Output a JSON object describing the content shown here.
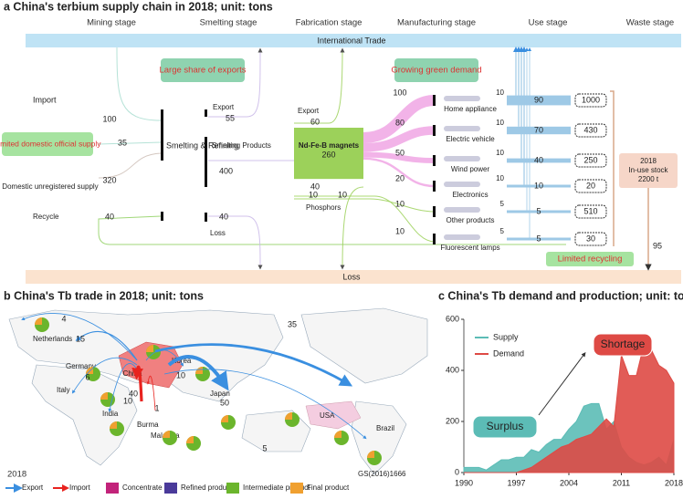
{
  "panel_a": {
    "title": "a China's terbium supply chain in 2018; unit: tons",
    "stages": [
      "Mining stage",
      "Smelting stage",
      "Fabrication stage",
      "Manufacturing stage",
      "Use stage",
      "Waste stage"
    ],
    "trade_bar": "International Trade",
    "loss_bar": "Loss",
    "sources": [
      {
        "label": "Import",
        "value": 100
      },
      {
        "label": "Limited domestic official supply",
        "value": 35
      },
      {
        "label": "Domestic unregistered supply",
        "value": 320
      },
      {
        "label": "Recycle",
        "value": 40
      }
    ],
    "smelting_node": "Smelting & Refining",
    "smelting_out": [
      {
        "label": "Export",
        "value": 55
      },
      {
        "label": "Smelting Products",
        "value": 400
      },
      {
        "label": "Loss",
        "value": 40
      }
    ],
    "fabrication_node": "Nd-Fe-B magnets",
    "fabrication_out": [
      {
        "label": "Export",
        "value": 60
      },
      {
        "value": 260
      },
      {
        "value": 40
      },
      {
        "label": "Phosphors",
        "value": 10
      },
      {
        "value": 10
      }
    ],
    "products": [
      {
        "label": "Home appliance",
        "value": 100,
        "export": 10,
        "use": 90,
        "stock": 1000
      },
      {
        "label": "Electric vehicle",
        "value": 80,
        "export": 10,
        "use": 70,
        "stock": 430
      },
      {
        "label": "Wind power",
        "value": 50,
        "export": 10,
        "use": 40,
        "stock": 250
      },
      {
        "label": "Electronics",
        "value": 20,
        "export": 10,
        "use": 10,
        "stock": 20
      },
      {
        "label": "Other products",
        "value": 10,
        "export": 5,
        "use": 5,
        "stock": 510
      },
      {
        "label": "Fluorescent lamps",
        "value": 10,
        "export": 5,
        "use": 5,
        "stock": 30
      }
    ],
    "in_use_stock": [
      "2018",
      "In-use stock",
      "2200 t"
    ],
    "waste": 95,
    "callouts": [
      "Large share of exports",
      "Growing green demand",
      "Limited recycling"
    ]
  },
  "panel_b": {
    "title": "b China's Tb trade in 2018; unit: tons",
    "countries": [
      "Netherlands",
      "Germany",
      "Italy",
      "India",
      "China",
      "Korea",
      "Japan",
      "Burma",
      "Malaysia",
      "USA",
      "Brazil"
    ],
    "flows": [
      4,
      15,
      6,
      10,
      10,
      35,
      50,
      40,
      1,
      5
    ],
    "year": "2018",
    "code": "GS(2016)1666",
    "legend": [
      {
        "label": "Export",
        "color": "#3a8fe0"
      },
      {
        "label": "Import",
        "color": "#e8231f"
      },
      {
        "label": "Concentrate",
        "color": "#c2237a"
      },
      {
        "label": "Refined product",
        "color": "#4a3a9a"
      },
      {
        "label": "Intermediate product",
        "color": "#6bb52c"
      },
      {
        "label": "Final product",
        "color": "#f0a030"
      }
    ]
  },
  "chart_data": {
    "type": "area",
    "title": "c China's Tb demand and production; unit: tons",
    "x": [
      1990,
      1991,
      1992,
      1993,
      1994,
      1995,
      1996,
      1997,
      1998,
      1999,
      2000,
      2001,
      2002,
      2003,
      2004,
      2005,
      2006,
      2007,
      2008,
      2009,
      2010,
      2011,
      2012,
      2013,
      2014,
      2015,
      2016,
      2017,
      2018
    ],
    "series": [
      {
        "name": "Supply",
        "color": "#5cbcb6",
        "values": [
          20,
          20,
          20,
          10,
          30,
          50,
          50,
          60,
          60,
          90,
          80,
          110,
          130,
          130,
          170,
          200,
          260,
          270,
          270,
          170,
          200,
          100,
          60,
          40,
          30,
          40,
          60,
          30,
          130
        ]
      },
      {
        "name": "Demand",
        "color": "#de4a45",
        "values": [
          0,
          0,
          0,
          0,
          0,
          0,
          0,
          0,
          10,
          20,
          40,
          60,
          80,
          100,
          110,
          130,
          140,
          150,
          180,
          210,
          180,
          460,
          380,
          380,
          500,
          480,
          420,
          400,
          350
        ]
      }
    ],
    "xlim": [
      1990,
      2018
    ],
    "xticks": [
      1990,
      1997,
      2004,
      2011,
      2018
    ],
    "ylim": [
      0,
      600
    ],
    "yticks": [
      0,
      200,
      400,
      600
    ],
    "annotations": [
      "Surplus",
      "Shortage"
    ]
  }
}
